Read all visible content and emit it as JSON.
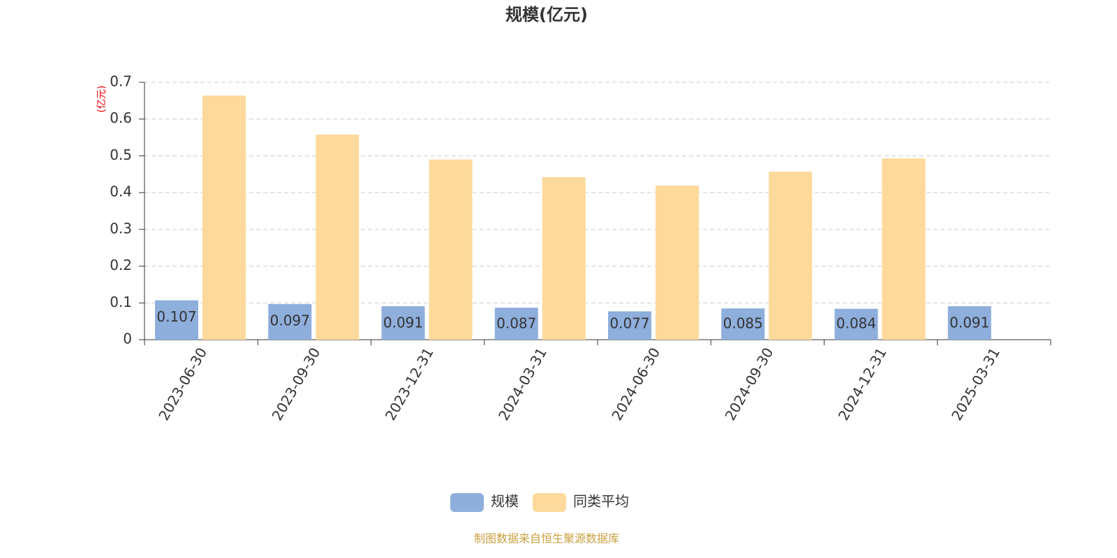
{
  "chart_data": {
    "type": "bar",
    "title": "规模(亿元)",
    "y_label": "(亿元)",
    "categories": [
      "2023-06-30",
      "2023-09-30",
      "2023-12-31",
      "2024-03-31",
      "2024-06-30",
      "2024-09-30",
      "2024-12-31",
      "2025-03-31"
    ],
    "series": [
      {
        "name": "规模",
        "color": "#8eaedc",
        "values": [
          0.107,
          0.097,
          0.091,
          0.087,
          0.077,
          0.085,
          0.084,
          0.091
        ],
        "show_labels": true
      },
      {
        "name": "同类平均",
        "color": "#fdd99b",
        "values": [
          0.664,
          0.558,
          0.49,
          0.442,
          0.419,
          0.457,
          0.493,
          null
        ],
        "show_labels": false
      }
    ],
    "ylim": [
      0,
      0.7
    ],
    "yticks": [
      0,
      0.1,
      0.2,
      0.3,
      0.4,
      0.5,
      0.6,
      0.7
    ],
    "grid": true,
    "source": "制图数据来自恒生聚源数据库"
  }
}
